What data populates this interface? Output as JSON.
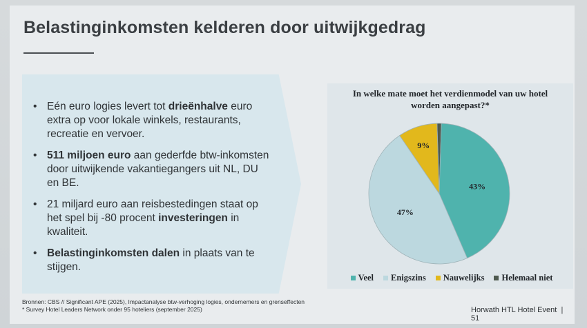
{
  "slide": {
    "title": "Belastinginkomsten kelderen door uitwijkgedrag"
  },
  "bullets": [
    {
      "b1": "Eén euro logies levert tot ",
      "bold": "drieënhalve",
      "b2": " euro extra op voor lokale winkels, restaurants, recreatie en vervoer."
    },
    {
      "b1": "",
      "bold": "511 miljoen euro",
      "b2": " aan gederfde btw-inkomsten door uitwijkende vakantiegangers uit NL, DU en BE."
    },
    {
      "b1": "21 miljard euro aan reisbestedingen staat op het spel bij -80 procent ",
      "bold": "investeringen",
      "b2": " in kwaliteit."
    },
    {
      "b1": "",
      "bold": "Belastinginkomsten dalen",
      "b2": " in plaats van te stijgen."
    }
  ],
  "sources": {
    "line1": "Bronnen: CBS // Significant APE (2025), Impactanalyse btw-verhoging logies, ondernemers en grenseffecten",
    "line2": "* Survey Hotel Leaders Network onder 95 hoteliers (september 2025)"
  },
  "footer": {
    "event": "Horwath HTL Hotel Event",
    "separator": "|",
    "page": "51"
  },
  "chart_data": {
    "type": "pie",
    "title_line1": "In welke mate moet het verdienmodel van uw hotel",
    "title_line2": "worden aangepast?*",
    "categories": [
      "Veel",
      "Enigszins",
      "Nauwelijks",
      "Helemaal niet"
    ],
    "values": [
      43,
      47,
      9,
      1
    ],
    "labels": [
      "43%",
      "47%",
      "9%",
      ""
    ],
    "colors": [
      "#4fb3ad",
      "#bcd8df",
      "#e2b81c",
      "#4f5a4f"
    ],
    "legend_position": "bottom"
  }
}
